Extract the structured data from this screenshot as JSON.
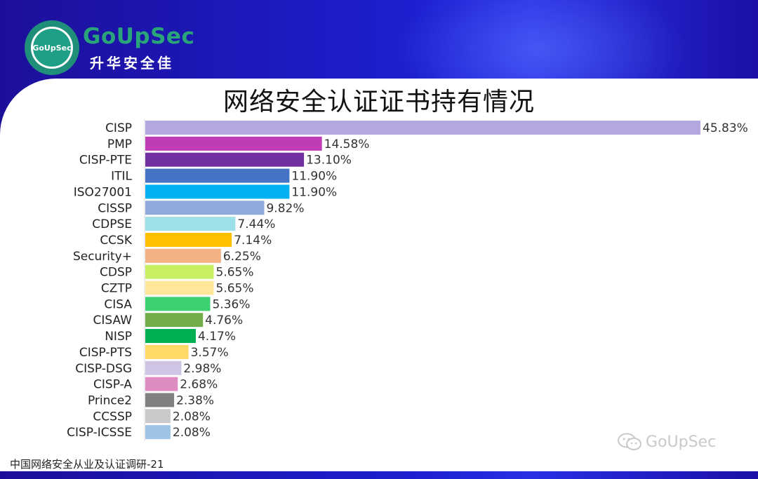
{
  "brand": {
    "name": "GoUpSec",
    "name_cn": "升华安全佳",
    "seal_text": "GoUpSec"
  },
  "footer_note": "中国网络安全从业及认证调研-21",
  "watermark_text": "GoUpSec",
  "chart_data": {
    "type": "bar",
    "orientation": "horizontal",
    "title": "网络安全认证证书持有情况",
    "xlabel": "",
    "ylabel": "",
    "xlim": [
      0,
      46
    ],
    "grid": false,
    "categories": [
      "CISP",
      "PMP",
      "CISP-PTE",
      "ITIL",
      "ISO27001",
      "CISSP",
      "CDPSE",
      "CCSK",
      "Security+",
      "CDSP",
      "CZTP",
      "CISA",
      "CISAW",
      "NISP",
      "CISP-PTS",
      "CISP-DSG",
      "CISP-A",
      "Prince2",
      "CCSSP",
      "CISP-ICSSE"
    ],
    "values": [
      45.83,
      14.58,
      13.1,
      11.9,
      11.9,
      9.82,
      7.44,
      7.14,
      6.25,
      5.65,
      5.65,
      5.36,
      4.76,
      4.17,
      3.57,
      2.98,
      2.68,
      2.38,
      2.08,
      2.08
    ],
    "value_labels": [
      "45.83%",
      "14.58%",
      "13.10%",
      "11.90%",
      "11.90%",
      "9.82%",
      "7.44%",
      "7.14%",
      "6.25%",
      "5.65%",
      "5.65%",
      "5.36%",
      "4.76%",
      "4.17%",
      "3.57%",
      "2.98%",
      "2.68%",
      "2.38%",
      "2.08%",
      "2.08%"
    ],
    "colors": [
      "#b4a7e0",
      "#c03bb6",
      "#7030a0",
      "#4472c4",
      "#00b0f0",
      "#8eaadb",
      "#9de0e8",
      "#ffc000",
      "#f4b183",
      "#c6ef61",
      "#ffe699",
      "#3cd070",
      "#70ad47",
      "#00b050",
      "#ffd966",
      "#d0c4e4",
      "#de8cc0",
      "#808080",
      "#c9c9c9",
      "#9dc3e6"
    ]
  }
}
